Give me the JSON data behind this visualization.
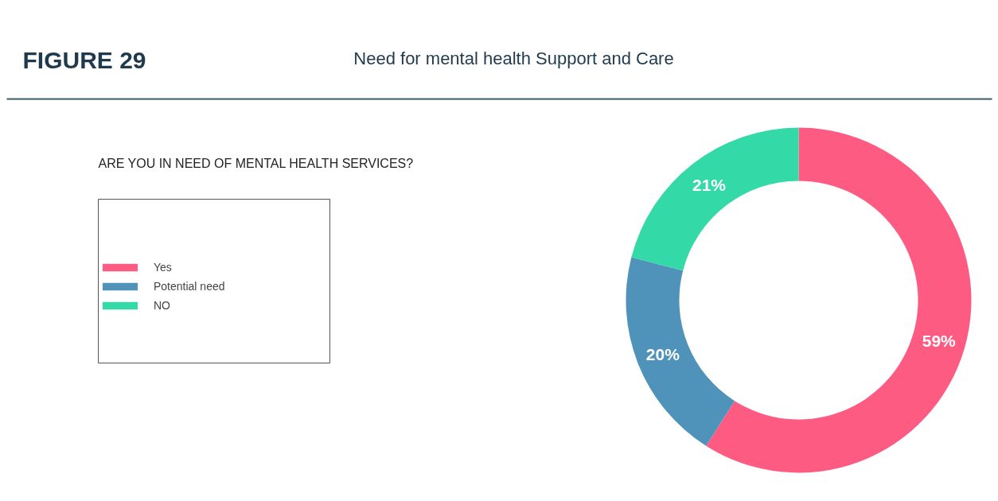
{
  "chart_data": {
    "type": "donut",
    "title": "Need for mental health Support and Care",
    "subtitle": "ARE YOU IN NEED OF MENTAL HEALTH  SERVICES?",
    "annotations": [
      "FIGURE 29"
    ],
    "categories": [
      "Yes",
      "Potential need",
      "NO"
    ],
    "values": [
      59,
      20,
      21
    ],
    "colors": [
      "#fe5b83",
      "#4f93bb",
      "#33d9a6"
    ],
    "value_labels": [
      "59%",
      "20%",
      "21%"
    ],
    "legend": "left"
  }
}
